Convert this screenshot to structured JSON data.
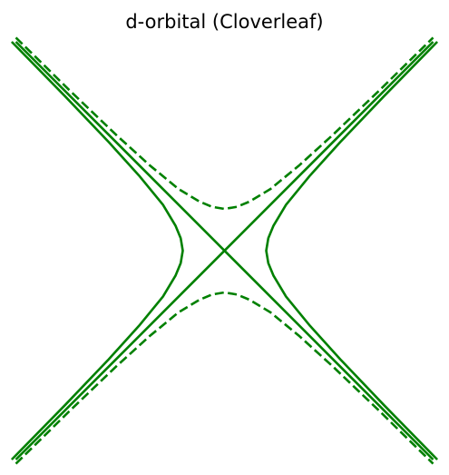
{
  "chart_data": {
    "type": "line",
    "title": "d-orbital (Cloverleaf)",
    "xlabel": "",
    "ylabel": "",
    "xlim": [
      -2,
      2
    ],
    "ylim": [
      -2,
      2
    ],
    "grid": false,
    "axes_visible": false,
    "legend": "none",
    "color": "#008000",
    "series": [
      {
        "kind": "asymptote",
        "equation": "y = x",
        "style": "solid",
        "x": [
          -2,
          2
        ],
        "y": [
          -2,
          2
        ]
      },
      {
        "kind": "asymptote",
        "equation": "y = -x",
        "style": "solid",
        "x": [
          -2,
          2
        ],
        "y": [
          2,
          -2
        ]
      },
      {
        "kind": "hyperbola",
        "equation": "x^2 - y^2 = 0.16",
        "style": "solid",
        "branch": "right",
        "x": [
          2.04,
          1.53,
          1.11,
          0.82,
          0.59,
          0.47,
          0.42,
          0.4,
          0.42,
          0.47,
          0.59,
          0.82,
          1.11,
          1.53,
          2.04
        ],
        "y": [
          2.0,
          1.48,
          1.04,
          0.72,
          0.44,
          0.24,
          0.12,
          0.0,
          -0.12,
          -0.24,
          -0.44,
          -0.72,
          -1.04,
          -1.48,
          -2.0
        ]
      },
      {
        "kind": "hyperbola",
        "equation": "x^2 - y^2 = 0.16",
        "style": "solid",
        "branch": "left",
        "x": [
          -2.04,
          -1.53,
          -1.11,
          -0.82,
          -0.59,
          -0.47,
          -0.42,
          -0.4,
          -0.42,
          -0.47,
          -0.59,
          -0.82,
          -1.11,
          -1.53,
          -2.04
        ],
        "y": [
          2.0,
          1.48,
          1.04,
          0.72,
          0.44,
          0.24,
          0.12,
          0.0,
          -0.12,
          -0.24,
          -0.44,
          -0.72,
          -1.04,
          -1.48,
          -2.0
        ]
      },
      {
        "kind": "hyperbola",
        "equation": "y^2 - x^2 = 0.16",
        "style": "dashed",
        "branch": "upper",
        "x": [
          -2.0,
          -1.48,
          -1.04,
          -0.72,
          -0.44,
          -0.24,
          -0.12,
          0.0,
          0.12,
          0.24,
          0.44,
          0.72,
          1.04,
          1.48,
          2.0
        ],
        "y": [
          2.04,
          1.53,
          1.11,
          0.82,
          0.59,
          0.47,
          0.42,
          0.4,
          0.42,
          0.47,
          0.59,
          0.82,
          1.11,
          1.53,
          2.04
        ]
      },
      {
        "kind": "hyperbola",
        "equation": "y^2 - x^2 = 0.16",
        "style": "dashed",
        "branch": "lower",
        "x": [
          -2.0,
          -1.48,
          -1.04,
          -0.72,
          -0.44,
          -0.24,
          -0.12,
          0.0,
          0.12,
          0.24,
          0.44,
          0.72,
          1.04,
          1.48,
          2.0
        ],
        "y": [
          -2.04,
          -1.53,
          -1.11,
          -0.82,
          -0.59,
          -0.47,
          -0.42,
          -0.4,
          -0.42,
          -0.47,
          -0.59,
          -0.82,
          -1.11,
          -1.53,
          -2.04
        ]
      }
    ]
  }
}
